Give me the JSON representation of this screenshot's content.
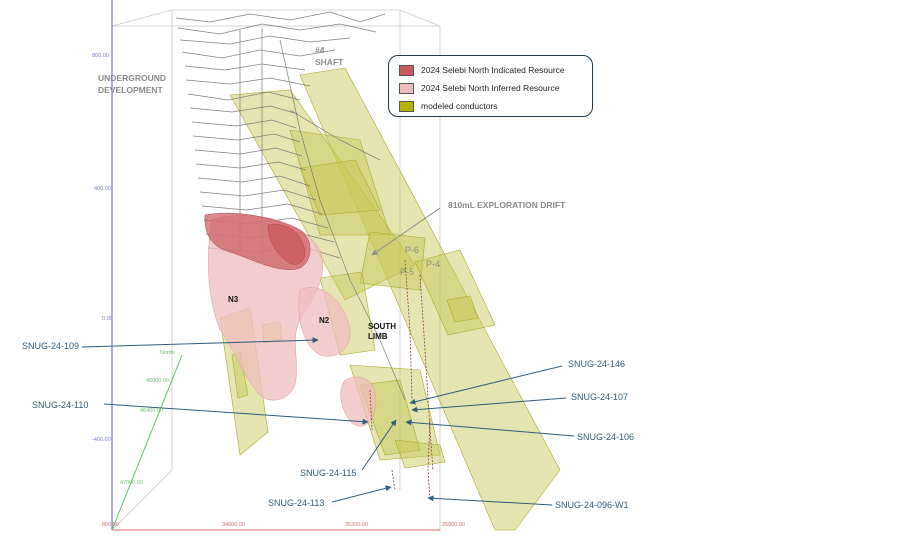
{
  "legend": {
    "items": [
      {
        "label": "2024 Selebi North Indicated Resource",
        "color": "#c9595d"
      },
      {
        "label": "2024 Selebi North Inferred Resource",
        "color": "#efbcbc"
      },
      {
        "label": "modeled conductors",
        "color": "#b5b500"
      }
    ]
  },
  "labels": {
    "underground_development": "UNDERGROUND\nDEVELOPMENT",
    "shaft": "#4\nSHAFT",
    "exploration_drift": "810mL EXPLORATION DRIFT",
    "n3": "N3",
    "n2": "N2",
    "south_limb": "SOUTH\nLIMB",
    "p6": "P-6",
    "p5": "P-5",
    "p4": "P-4"
  },
  "drillholes": [
    "SNUG-24-109",
    "SNUG-24-110",
    "SNUG-24-146",
    "SNUG-24-107",
    "SNUG-24-106",
    "SNUG-24-115",
    "SNUG-24-113",
    "SNUG-24-096-W1"
  ],
  "axis_ticks": {
    "vertical": [
      "800.00",
      "400.00",
      "0.00",
      "-400.00"
    ],
    "bottom": [
      "-800.00",
      "34600.00",
      "35200.00",
      "35800.00"
    ],
    "depth": [
      "Northi",
      "46000.00",
      "46400.00",
      "47000.00"
    ]
  },
  "colors": {
    "indicated": "#c9595d",
    "inferred": "#efbcbc",
    "conductor": "#b5b500",
    "arrow": "#2f5d7e"
  }
}
